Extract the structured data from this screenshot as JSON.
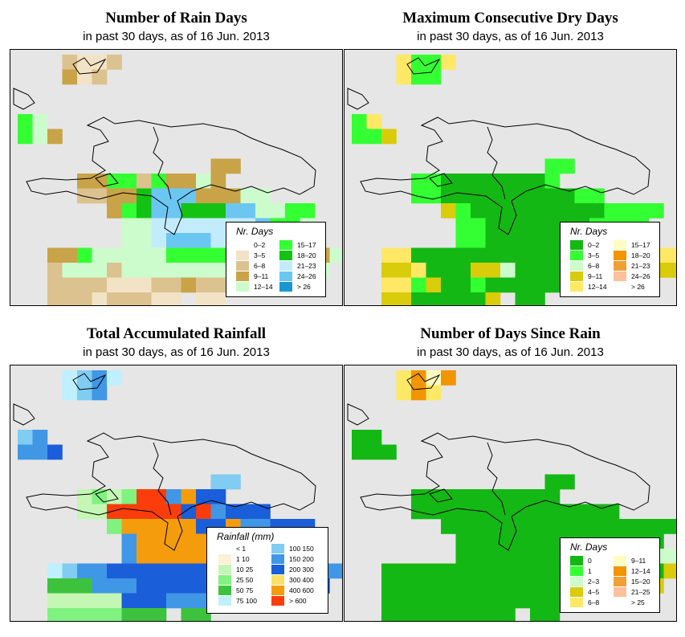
{
  "panels": [
    {
      "title": "Number of Rain Days",
      "subtitle": "in past 30 days, as of  16 Jun. 2013",
      "legend_title": "Nr. Days",
      "legend_items": [
        {
          "label": "0–2",
          "color": "#ffffff"
        },
        {
          "label": "3–5",
          "color": "#f2e3c6"
        },
        {
          "label": "6–8",
          "color": "#dcc28f"
        },
        {
          "label": "9–11",
          "color": "#c9a347"
        },
        {
          "label": "12–14",
          "color": "#ccfccc"
        },
        {
          "label": "15–17",
          "color": "#33ff33"
        },
        {
          "label": "18–20",
          "color": "#13c213"
        },
        {
          "label": "21–23",
          "color": "#c2ecfc"
        },
        {
          "label": "24–26",
          "color": "#6cc6f2"
        },
        {
          "label": "> 26",
          "color": "#1997d4"
        }
      ]
    },
    {
      "title": "Maximum Consecutive Dry Days",
      "subtitle": "in past 30 days, as of  16 Jun. 2013",
      "legend_title": "Nr. Days",
      "legend_items": [
        {
          "label": "0–2",
          "color": "#14b814"
        },
        {
          "label": "3–5",
          "color": "#33ff33"
        },
        {
          "label": "6–8",
          "color": "#ccfccc"
        },
        {
          "label": "9–11",
          "color": "#d9cc0a"
        },
        {
          "label": "12–14",
          "color": "#ffe866"
        },
        {
          "label": "15–17",
          "color": "#fffcc0"
        },
        {
          "label": "18–20",
          "color": "#f29500"
        },
        {
          "label": "21–23",
          "color": "#f2a033"
        },
        {
          "label": "24–26",
          "color": "#fcc09c"
        },
        {
          "label": "> 26",
          "color": "#ffffff"
        }
      ]
    },
    {
      "title": "Total Accumulated Rainfall",
      "subtitle": "in past 30 days, as of  16 Jun. 2013",
      "legend_title": "Rainfall (mm)",
      "legend_items": [
        {
          "label": "< 1",
          "color": "#ffffff"
        },
        {
          "label": "1    10",
          "color": "#fcf0d6"
        },
        {
          "label": "10    25",
          "color": "#c4f7b4"
        },
        {
          "label": "25    50",
          "color": "#7ff27f"
        },
        {
          "label": "50    75",
          "color": "#3dc23d"
        },
        {
          "label": "75    100",
          "color": "#bff0ff"
        },
        {
          "label": "100    150",
          "color": "#80ccf2"
        },
        {
          "label": "150    200",
          "color": "#4097e6"
        },
        {
          "label": "200    300",
          "color": "#1a5ed9"
        },
        {
          "label": "300    400",
          "color": "#fce066"
        },
        {
          "label": "400    600",
          "color": "#f59c0c"
        },
        {
          "label": "> 600",
          "color": "#fa3d0a"
        }
      ]
    },
    {
      "title": "Number of Days Since Rain",
      "subtitle": "in past 30 days, as of  16 Jun. 2013",
      "legend_title": "Nr. Days",
      "legend_items": [
        {
          "label": "0",
          "color": "#14b814"
        },
        {
          "label": "1",
          "color": "#33ff33"
        },
        {
          "label": "2–3",
          "color": "#ccfccc"
        },
        {
          "label": "4–5",
          "color": "#d9cc0a"
        },
        {
          "label": "6–8",
          "color": "#ffe866"
        },
        {
          "label": "9–11",
          "color": "#fffcc0"
        },
        {
          "label": "12–14",
          "color": "#f29500"
        },
        {
          "label": "15–20",
          "color": "#f2a033"
        },
        {
          "label": "21–25",
          "color": "#fcc09c"
        },
        {
          "label": "> 25",
          "color": "#ffffff"
        }
      ]
    }
  ]
}
